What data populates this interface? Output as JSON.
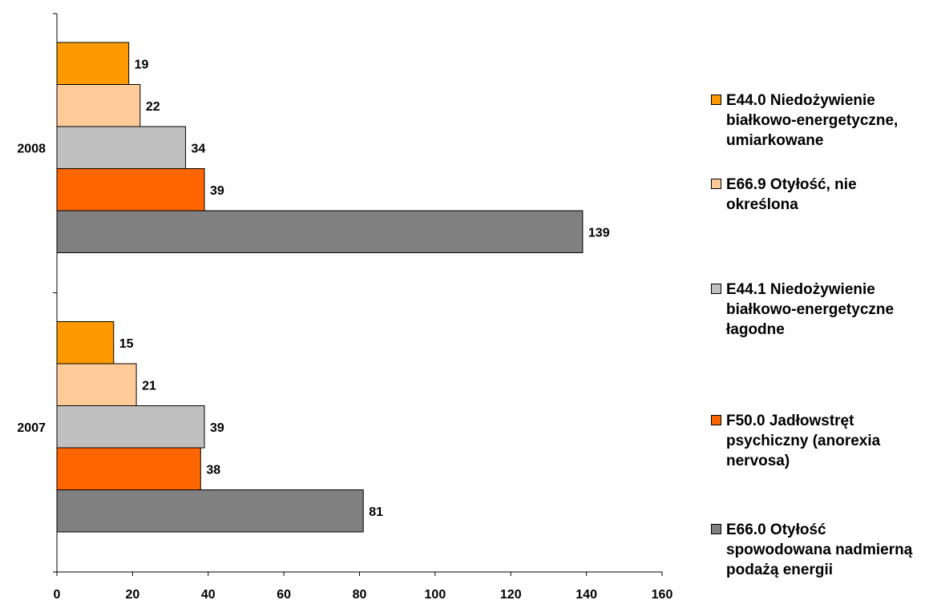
{
  "chart_data": {
    "type": "bar",
    "orientation": "horizontal",
    "categories": [
      "2008",
      "2007"
    ],
    "series": [
      {
        "name": "E44.0  Niedożywienie białkowo-energetyczne, umiarkowane",
        "color": "#FF9900",
        "values": [
          19,
          15
        ]
      },
      {
        "name": "E66.9  Otyłość, nie określona",
        "color": "#FFCC99",
        "values": [
          22,
          21
        ]
      },
      {
        "name": "E44.1  Niedożywienie białkowo-energetyczne łagodne",
        "color": "#C0C0C0",
        "values": [
          34,
          39
        ]
      },
      {
        "name": "F50.0  Jadłowstręt psychiczny (anorexia nervosa)",
        "color": "#FF6600",
        "values": [
          39,
          38
        ]
      },
      {
        "name": "E66.0  Otyłość spowodowana nadmierną podażą energii",
        "color": "#808080",
        "values": [
          139,
          81
        ]
      }
    ],
    "xlim": [
      0,
      160
    ],
    "xticks": [
      "0",
      "20",
      "40",
      "60",
      "80",
      "100",
      "120",
      "140",
      "160"
    ],
    "grid": false,
    "legend": "right",
    "title": "",
    "xlabel": "",
    "ylabel": ""
  }
}
